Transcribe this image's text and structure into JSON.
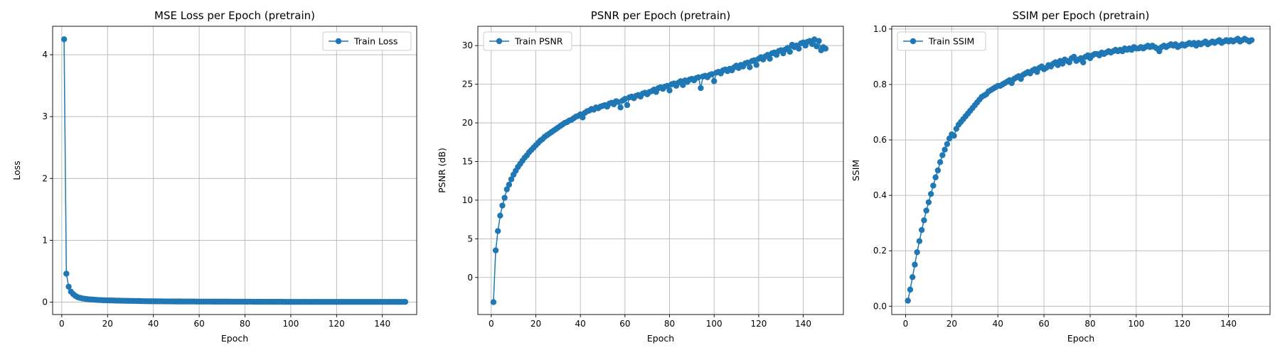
{
  "colors": {
    "series": "#1f77b4",
    "grid": "#b0b0b0",
    "axes": "#000000",
    "background": "#ffffff"
  },
  "chart_data": [
    {
      "type": "line",
      "title": "MSE Loss per Epoch (pretrain)",
      "xlabel": "Epoch",
      "ylabel": "Loss",
      "xlim": [
        -4,
        155
      ],
      "ylim": [
        -0.2,
        4.46
      ],
      "xticks": [
        0,
        20,
        40,
        60,
        80,
        100,
        120,
        140
      ],
      "yticks": [
        0,
        1,
        2,
        3,
        4
      ],
      "grid": true,
      "legend_position": "upper right",
      "marker": "circle",
      "series": [
        {
          "name": "Train Loss",
          "x": [
            1,
            2,
            3,
            4,
            5,
            6,
            7,
            8,
            9,
            10,
            11,
            12,
            13,
            14,
            15,
            16,
            17,
            18,
            19,
            20,
            21,
            22,
            23,
            24,
            25,
            26,
            27,
            28,
            29,
            30,
            31,
            32,
            33,
            34,
            35,
            36,
            37,
            38,
            39,
            40,
            41,
            42,
            43,
            44,
            45,
            46,
            47,
            48,
            49,
            50,
            51,
            52,
            53,
            54,
            55,
            56,
            57,
            58,
            59,
            60,
            61,
            62,
            63,
            64,
            65,
            66,
            67,
            68,
            69,
            70,
            71,
            72,
            73,
            74,
            75,
            76,
            77,
            78,
            79,
            80,
            81,
            82,
            83,
            84,
            85,
            86,
            87,
            88,
            89,
            90,
            91,
            92,
            93,
            94,
            95,
            96,
            97,
            98,
            99,
            100,
            101,
            102,
            103,
            104,
            105,
            106,
            107,
            108,
            109,
            110,
            111,
            112,
            113,
            114,
            115,
            116,
            117,
            118,
            119,
            120,
            121,
            122,
            123,
            124,
            125,
            126,
            127,
            128,
            129,
            130,
            131,
            132,
            133,
            134,
            135,
            136,
            137,
            138,
            139,
            140,
            141,
            142,
            143,
            144,
            145,
            146,
            147,
            148,
            149,
            150
          ],
          "y": [
            4.25,
            0.46,
            0.25,
            0.17,
            0.13,
            0.1,
            0.08,
            0.07,
            0.06,
            0.055,
            0.05,
            0.046,
            0.043,
            0.04,
            0.037,
            0.035,
            0.033,
            0.031,
            0.03,
            0.029,
            0.028,
            0.027,
            0.026,
            0.025,
            0.024,
            0.023,
            0.022,
            0.022,
            0.021,
            0.02,
            0.02,
            0.019,
            0.019,
            0.018,
            0.016,
            0.016,
            0.015,
            0.015,
            0.014,
            0.014,
            0.014,
            0.013,
            0.013,
            0.013,
            0.012,
            0.012,
            0.012,
            0.012,
            0.011,
            0.011,
            0.011,
            0.011,
            0.01,
            0.01,
            0.01,
            0.01,
            0.01,
            0.01,
            0.009,
            0.009,
            0.009,
            0.009,
            0.009,
            0.009,
            0.009,
            0.008,
            0.008,
            0.008,
            0.008,
            0.008,
            0.008,
            0.008,
            0.008,
            0.007,
            0.007,
            0.007,
            0.007,
            0.007,
            0.007,
            0.007,
            0.007,
            0.007,
            0.007,
            0.006,
            0.006,
            0.006,
            0.006,
            0.006,
            0.006,
            0.006,
            0.006,
            0.006,
            0.006,
            0.006,
            0.006,
            0.006,
            0.005,
            0.005,
            0.005,
            0.005,
            0.005,
            0.005,
            0.005,
            0.005,
            0.005,
            0.005,
            0.005,
            0.005,
            0.005,
            0.005,
            0.005,
            0.005,
            0.005,
            0.005,
            0.005,
            0.005,
            0.005,
            0.005,
            0.005,
            0.005,
            0.005,
            0.005,
            0.005,
            0.005,
            0.005,
            0.005,
            0.005,
            0.005,
            0.005,
            0.005,
            0.005,
            0.005,
            0.005,
            0.005,
            0.005,
            0.005,
            0.005,
            0.005,
            0.005,
            0.005,
            0.005,
            0.005,
            0.005,
            0.005,
            0.005,
            0.005,
            0.005,
            0.005,
            0.005,
            0.005
          ]
        }
      ]
    },
    {
      "type": "line",
      "title": "PSNR per Epoch (pretrain)",
      "xlabel": "Epoch",
      "ylabel": "PSNR (dB)",
      "xlim": [
        -6,
        158
      ],
      "ylim": [
        -4.8,
        32.5
      ],
      "xticks": [
        0,
        20,
        40,
        60,
        80,
        100,
        120,
        140
      ],
      "yticks": [
        0,
        5,
        10,
        15,
        20,
        25,
        30
      ],
      "grid": true,
      "legend_position": "upper left",
      "marker": "circle",
      "series": [
        {
          "name": "Train PSNR",
          "x": [
            1,
            2,
            3,
            4,
            5,
            6,
            7,
            8,
            9,
            10,
            11,
            12,
            13,
            14,
            15,
            16,
            17,
            18,
            19,
            20,
            21,
            22,
            23,
            24,
            25,
            26,
            27,
            28,
            29,
            30,
            31,
            32,
            33,
            34,
            35,
            36,
            37,
            38,
            39,
            40,
            41,
            42,
            43,
            44,
            45,
            46,
            47,
            48,
            49,
            50,
            51,
            52,
            53,
            54,
            55,
            56,
            57,
            58,
            59,
            60,
            61,
            62,
            63,
            64,
            65,
            66,
            67,
            68,
            69,
            70,
            71,
            72,
            73,
            74,
            75,
            76,
            77,
            78,
            79,
            80,
            81,
            82,
            83,
            84,
            85,
            86,
            87,
            88,
            89,
            90,
            91,
            92,
            93,
            94,
            95,
            96,
            97,
            98,
            99,
            100,
            101,
            102,
            103,
            104,
            105,
            106,
            107,
            108,
            109,
            110,
            111,
            112,
            113,
            114,
            115,
            116,
            117,
            118,
            119,
            120,
            121,
            122,
            123,
            124,
            125,
            126,
            127,
            128,
            129,
            130,
            131,
            132,
            133,
            134,
            135,
            136,
            137,
            138,
            139,
            140,
            141,
            142,
            143,
            144,
            145,
            146,
            147,
            148,
            149,
            150
          ],
          "y": [
            -3.2,
            3.5,
            6.0,
            8.0,
            9.3,
            10.3,
            11.4,
            12.0,
            12.7,
            13.3,
            13.8,
            14.3,
            14.7,
            15.1,
            15.5,
            15.8,
            16.2,
            16.5,
            16.8,
            17.1,
            17.4,
            17.7,
            17.9,
            18.2,
            18.4,
            18.6,
            18.8,
            19.0,
            19.2,
            19.4,
            19.6,
            19.8,
            20.0,
            20.1,
            20.3,
            20.4,
            20.6,
            20.8,
            20.9,
            21.1,
            20.7,
            21.3,
            21.5,
            21.6,
            21.8,
            21.7,
            22.0,
            21.9,
            22.1,
            22.2,
            22.3,
            22.1,
            22.5,
            22.6,
            22.4,
            22.8,
            22.7,
            22.0,
            22.9,
            23.1,
            22.3,
            23.3,
            23.4,
            23.2,
            23.5,
            23.6,
            23.4,
            23.8,
            23.9,
            23.7,
            24.0,
            24.1,
            24.3,
            24.0,
            24.5,
            24.6,
            24.4,
            24.7,
            24.8,
            24.2,
            25.0,
            25.1,
            24.8,
            25.2,
            25.4,
            24.9,
            25.5,
            25.3,
            25.6,
            25.7,
            25.5,
            25.8,
            25.9,
            24.5,
            26.0,
            26.1,
            25.9,
            26.2,
            26.3,
            25.4,
            26.5,
            26.6,
            26.4,
            26.8,
            26.9,
            26.7,
            27.0,
            26.8,
            27.2,
            27.4,
            27.1,
            27.5,
            27.3,
            27.7,
            27.8,
            27.2,
            28.0,
            28.1,
            27.5,
            28.3,
            28.5,
            28.2,
            28.6,
            28.8,
            28.3,
            29.0,
            29.1,
            28.8,
            29.3,
            29.4,
            29.0,
            29.5,
            29.7,
            29.2,
            30.1,
            29.8,
            30.0,
            29.6,
            30.3,
            30.4,
            30.0,
            30.5,
            30.6,
            30.2,
            30.8,
            29.9,
            30.6,
            29.4,
            29.8,
            29.6
          ]
        }
      ]
    },
    {
      "type": "line",
      "title": "SSIM per Epoch (pretrain)",
      "xlabel": "Epoch",
      "ylabel": "SSIM",
      "xlim": [
        -6,
        158
      ],
      "ylim": [
        -0.03,
        1.01
      ],
      "xticks": [
        0,
        20,
        40,
        60,
        80,
        100,
        120,
        140
      ],
      "yticks": [
        0.0,
        0.2,
        0.4,
        0.6,
        0.8,
        1.0
      ],
      "grid": true,
      "legend_position": "upper left",
      "marker": "circle",
      "series": [
        {
          "name": "Train SSIM",
          "x": [
            1,
            2,
            3,
            4,
            5,
            6,
            7,
            8,
            9,
            10,
            11,
            12,
            13,
            14,
            15,
            16,
            17,
            18,
            19,
            20,
            21,
            22,
            23,
            24,
            25,
            26,
            27,
            28,
            29,
            30,
            31,
            32,
            33,
            34,
            35,
            36,
            37,
            38,
            39,
            40,
            41,
            42,
            43,
            44,
            45,
            46,
            47,
            48,
            49,
            50,
            51,
            52,
            53,
            54,
            55,
            56,
            57,
            58,
            59,
            60,
            61,
            62,
            63,
            64,
            65,
            66,
            67,
            68,
            69,
            70,
            71,
            72,
            73,
            74,
            75,
            76,
            77,
            78,
            79,
            80,
            81,
            82,
            83,
            84,
            85,
            86,
            87,
            88,
            89,
            90,
            91,
            92,
            93,
            94,
            95,
            96,
            97,
            98,
            99,
            100,
            101,
            102,
            103,
            104,
            105,
            106,
            107,
            108,
            109,
            110,
            111,
            112,
            113,
            114,
            115,
            116,
            117,
            118,
            119,
            120,
            121,
            122,
            123,
            124,
            125,
            126,
            127,
            128,
            129,
            130,
            131,
            132,
            133,
            134,
            135,
            136,
            137,
            138,
            139,
            140,
            141,
            142,
            143,
            144,
            145,
            146,
            147,
            148,
            149,
            150
          ],
          "y": [
            0.02,
            0.06,
            0.105,
            0.15,
            0.195,
            0.235,
            0.275,
            0.31,
            0.345,
            0.375,
            0.405,
            0.435,
            0.465,
            0.49,
            0.52,
            0.545,
            0.565,
            0.585,
            0.605,
            0.62,
            0.615,
            0.64,
            0.655,
            0.665,
            0.675,
            0.685,
            0.695,
            0.705,
            0.715,
            0.725,
            0.735,
            0.745,
            0.755,
            0.76,
            0.765,
            0.775,
            0.78,
            0.785,
            0.79,
            0.795,
            0.795,
            0.8,
            0.805,
            0.81,
            0.815,
            0.805,
            0.82,
            0.825,
            0.83,
            0.82,
            0.835,
            0.84,
            0.845,
            0.84,
            0.85,
            0.855,
            0.845,
            0.86,
            0.865,
            0.855,
            0.86,
            0.87,
            0.865,
            0.875,
            0.88,
            0.87,
            0.885,
            0.875,
            0.89,
            0.885,
            0.88,
            0.895,
            0.9,
            0.885,
            0.89,
            0.895,
            0.88,
            0.9,
            0.905,
            0.895,
            0.905,
            0.91,
            0.91,
            0.905,
            0.915,
            0.91,
            0.915,
            0.92,
            0.915,
            0.92,
            0.925,
            0.92,
            0.925,
            0.92,
            0.93,
            0.925,
            0.93,
            0.925,
            0.935,
            0.93,
            0.93,
            0.935,
            0.93,
            0.935,
            0.94,
            0.935,
            0.94,
            0.935,
            0.93,
            0.92,
            0.935,
            0.94,
            0.935,
            0.94,
            0.945,
            0.94,
            0.945,
            0.935,
            0.94,
            0.945,
            0.94,
            0.945,
            0.95,
            0.945,
            0.95,
            0.94,
            0.95,
            0.945,
            0.95,
            0.955,
            0.945,
            0.95,
            0.955,
            0.95,
            0.955,
            0.96,
            0.95,
            0.955,
            0.96,
            0.955,
            0.96,
            0.955,
            0.96,
            0.965,
            0.955,
            0.96,
            0.965,
            0.96,
            0.955,
            0.96
          ]
        }
      ]
    }
  ]
}
